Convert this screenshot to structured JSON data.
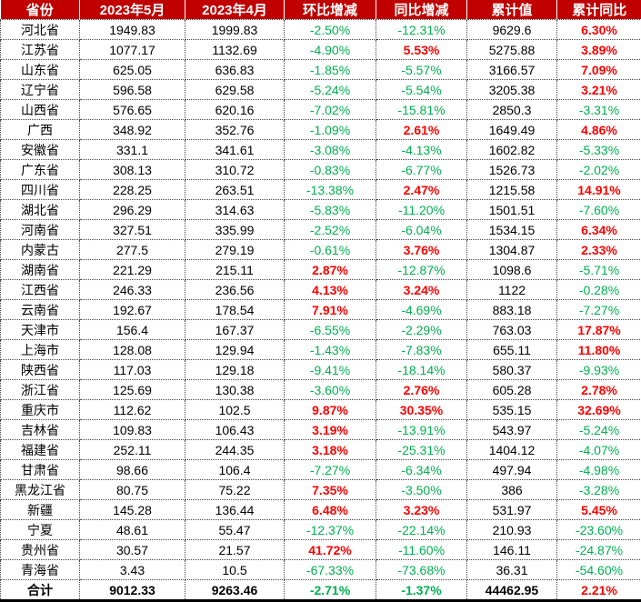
{
  "colors": {
    "header_bg": "#C00000",
    "header_fg": "#FFFFFF",
    "positive_red": "#FF0000",
    "negative_green": "#00B050",
    "text_black": "#000000"
  },
  "chart_data": {
    "type": "table",
    "columns": [
      "省份",
      "2023年5月",
      "2023年4月",
      "环比增减",
      "同比增减",
      "累计值",
      "累计同比"
    ],
    "rows": [
      {
        "province": "河北省",
        "may2023": "1949.83",
        "apr2023": "1999.83",
        "mom": "-2.50%",
        "yoy": "-12.31%",
        "cum": "9629.6",
        "cum_yoy": "6.30%"
      },
      {
        "province": "江苏省",
        "may2023": "1077.17",
        "apr2023": "1132.69",
        "mom": "-4.90%",
        "yoy": "5.53%",
        "cum": "5275.88",
        "cum_yoy": "3.89%"
      },
      {
        "province": "山东省",
        "may2023": "625.05",
        "apr2023": "636.83",
        "mom": "-1.85%",
        "yoy": "-5.57%",
        "cum": "3166.57",
        "cum_yoy": "7.09%"
      },
      {
        "province": "辽宁省",
        "may2023": "596.58",
        "apr2023": "629.58",
        "mom": "-5.24%",
        "yoy": "-5.54%",
        "cum": "3205.38",
        "cum_yoy": "3.21%"
      },
      {
        "province": "山西省",
        "may2023": "576.65",
        "apr2023": "620.16",
        "mom": "-7.02%",
        "yoy": "-15.81%",
        "cum": "2850.3",
        "cum_yoy": "-3.31%"
      },
      {
        "province": "广西",
        "may2023": "348.92",
        "apr2023": "352.76",
        "mom": "-1.09%",
        "yoy": "2.61%",
        "cum": "1649.49",
        "cum_yoy": "4.86%"
      },
      {
        "province": "安徽省",
        "may2023": "331.1",
        "apr2023": "341.61",
        "mom": "-3.08%",
        "yoy": "-4.13%",
        "cum": "1602.82",
        "cum_yoy": "-5.33%"
      },
      {
        "province": "广东省",
        "may2023": "308.13",
        "apr2023": "310.72",
        "mom": "-0.83%",
        "yoy": "-6.77%",
        "cum": "1526.73",
        "cum_yoy": "-2.02%"
      },
      {
        "province": "四川省",
        "may2023": "228.25",
        "apr2023": "263.51",
        "mom": "-13.38%",
        "yoy": "2.47%",
        "cum": "1215.58",
        "cum_yoy": "14.91%"
      },
      {
        "province": "湖北省",
        "may2023": "296.29",
        "apr2023": "314.63",
        "mom": "-5.83%",
        "yoy": "-11.20%",
        "cum": "1501.51",
        "cum_yoy": "-7.60%"
      },
      {
        "province": "河南省",
        "may2023": "327.51",
        "apr2023": "335.99",
        "mom": "-2.52%",
        "yoy": "-6.04%",
        "cum": "1534.15",
        "cum_yoy": "6.34%"
      },
      {
        "province": "内蒙古",
        "may2023": "277.5",
        "apr2023": "279.19",
        "mom": "-0.61%",
        "yoy": "3.76%",
        "cum": "1304.87",
        "cum_yoy": "2.33%"
      },
      {
        "province": "湖南省",
        "may2023": "221.29",
        "apr2023": "215.11",
        "mom": "2.87%",
        "yoy": "-12.87%",
        "cum": "1098.6",
        "cum_yoy": "-5.71%"
      },
      {
        "province": "江西省",
        "may2023": "246.33",
        "apr2023": "236.56",
        "mom": "4.13%",
        "yoy": "3.24%",
        "cum": "1122",
        "cum_yoy": "-0.28%"
      },
      {
        "province": "云南省",
        "may2023": "192.67",
        "apr2023": "178.54",
        "mom": "7.91%",
        "yoy": "-4.69%",
        "cum": "883.18",
        "cum_yoy": "-7.27%"
      },
      {
        "province": "天津市",
        "may2023": "156.4",
        "apr2023": "167.37",
        "mom": "-6.55%",
        "yoy": "-2.29%",
        "cum": "763.03",
        "cum_yoy": "17.87%"
      },
      {
        "province": "上海市",
        "may2023": "128.08",
        "apr2023": "129.94",
        "mom": "-1.43%",
        "yoy": "-7.83%",
        "cum": "655.11",
        "cum_yoy": "11.80%"
      },
      {
        "province": "陕西省",
        "may2023": "117.03",
        "apr2023": "129.18",
        "mom": "-9.41%",
        "yoy": "-18.14%",
        "cum": "580.37",
        "cum_yoy": "-9.93%"
      },
      {
        "province": "浙江省",
        "may2023": "125.69",
        "apr2023": "130.38",
        "mom": "-3.60%",
        "yoy": "2.76%",
        "cum": "605.28",
        "cum_yoy": "2.78%"
      },
      {
        "province": "重庆市",
        "may2023": "112.62",
        "apr2023": "102.5",
        "mom": "9.87%",
        "yoy": "30.35%",
        "cum": "535.15",
        "cum_yoy": "32.69%"
      },
      {
        "province": "吉林省",
        "may2023": "109.83",
        "apr2023": "106.43",
        "mom": "3.19%",
        "yoy": "-13.91%",
        "cum": "543.97",
        "cum_yoy": "-5.24%"
      },
      {
        "province": "福建省",
        "may2023": "252.11",
        "apr2023": "244.35",
        "mom": "3.18%",
        "yoy": "-25.31%",
        "cum": "1404.12",
        "cum_yoy": "-4.07%"
      },
      {
        "province": "甘肃省",
        "may2023": "98.66",
        "apr2023": "106.4",
        "mom": "-7.27%",
        "yoy": "-6.34%",
        "cum": "497.94",
        "cum_yoy": "-4.98%"
      },
      {
        "province": "黑龙江省",
        "may2023": "80.75",
        "apr2023": "75.22",
        "mom": "7.35%",
        "yoy": "-3.50%",
        "cum": "386",
        "cum_yoy": "-3.28%"
      },
      {
        "province": "新疆",
        "may2023": "145.28",
        "apr2023": "136.44",
        "mom": "6.48%",
        "yoy": "3.23%",
        "cum": "531.97",
        "cum_yoy": "5.45%"
      },
      {
        "province": "宁夏",
        "may2023": "48.61",
        "apr2023": "55.47",
        "mom": "-12.37%",
        "yoy": "-22.14%",
        "cum": "210.93",
        "cum_yoy": "-23.60%"
      },
      {
        "province": "贵州省",
        "may2023": "30.57",
        "apr2023": "21.57",
        "mom": "41.72%",
        "yoy": "-11.60%",
        "cum": "146.11",
        "cum_yoy": "-24.87%"
      },
      {
        "province": "青海省",
        "may2023": "3.43",
        "apr2023": "10.5",
        "mom": "-67.33%",
        "yoy": "-73.68%",
        "cum": "36.31",
        "cum_yoy": "-54.60%"
      }
    ],
    "total": {
      "province": "合计",
      "may2023": "9012.33",
      "apr2023": "9263.46",
      "mom": "-2.71%",
      "yoy": "-1.37%",
      "cum": "44462.95",
      "cum_yoy": "2.21%"
    }
  }
}
